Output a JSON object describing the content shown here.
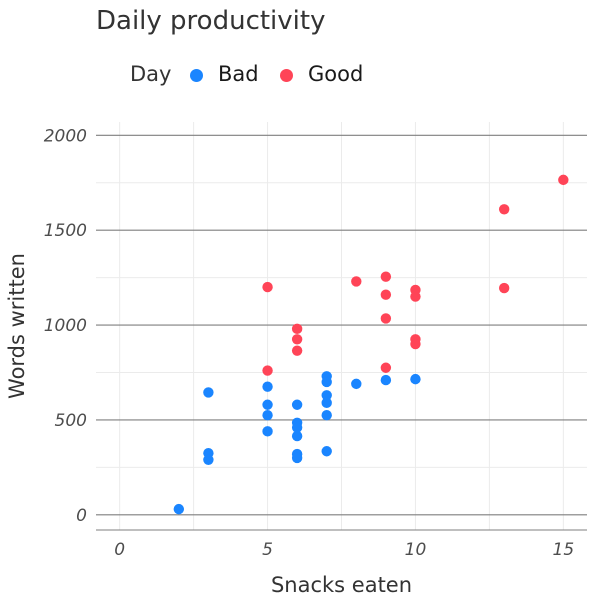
{
  "chart_data": {
    "type": "scatter",
    "title": "Daily productivity",
    "xlabel": "Snacks eaten",
    "ylabel": "Words written",
    "legend_title": "Day",
    "legend_position": "top-left",
    "xlim": [
      -0.8,
      15.8
    ],
    "ylim": [
      -80,
      2070
    ],
    "xticks": [
      0,
      5,
      10,
      15
    ],
    "yticks": [
      0,
      500,
      1000,
      1500,
      2000
    ],
    "grid": true,
    "series": [
      {
        "name": "Bad",
        "color": "#1a85ff",
        "points": [
          {
            "x": 2,
            "y": 30
          },
          {
            "x": 3,
            "y": 645
          },
          {
            "x": 3,
            "y": 325
          },
          {
            "x": 3,
            "y": 290
          },
          {
            "x": 5,
            "y": 675
          },
          {
            "x": 5,
            "y": 580
          },
          {
            "x": 5,
            "y": 525
          },
          {
            "x": 5,
            "y": 440
          },
          {
            "x": 6,
            "y": 580
          },
          {
            "x": 6,
            "y": 485
          },
          {
            "x": 6,
            "y": 460
          },
          {
            "x": 6,
            "y": 415
          },
          {
            "x": 6,
            "y": 320
          },
          {
            "x": 6,
            "y": 300
          },
          {
            "x": 7,
            "y": 730
          },
          {
            "x": 7,
            "y": 700
          },
          {
            "x": 7,
            "y": 630
          },
          {
            "x": 7,
            "y": 590
          },
          {
            "x": 7,
            "y": 525
          },
          {
            "x": 7,
            "y": 335
          },
          {
            "x": 8,
            "y": 690
          },
          {
            "x": 9,
            "y": 710
          },
          {
            "x": 10,
            "y": 715
          }
        ]
      },
      {
        "name": "Good",
        "color": "#ff4457",
        "points": [
          {
            "x": 5,
            "y": 1200
          },
          {
            "x": 5,
            "y": 760
          },
          {
            "x": 6,
            "y": 980
          },
          {
            "x": 6,
            "y": 925
          },
          {
            "x": 6,
            "y": 865
          },
          {
            "x": 8,
            "y": 1230
          },
          {
            "x": 9,
            "y": 1255
          },
          {
            "x": 9,
            "y": 1160
          },
          {
            "x": 9,
            "y": 1035
          },
          {
            "x": 9,
            "y": 775
          },
          {
            "x": 10,
            "y": 1185
          },
          {
            "x": 10,
            "y": 1150
          },
          {
            "x": 10,
            "y": 925
          },
          {
            "x": 10,
            "y": 900
          },
          {
            "x": 13,
            "y": 1610
          },
          {
            "x": 13,
            "y": 1195
          },
          {
            "x": 15,
            "y": 1765
          }
        ]
      }
    ]
  }
}
